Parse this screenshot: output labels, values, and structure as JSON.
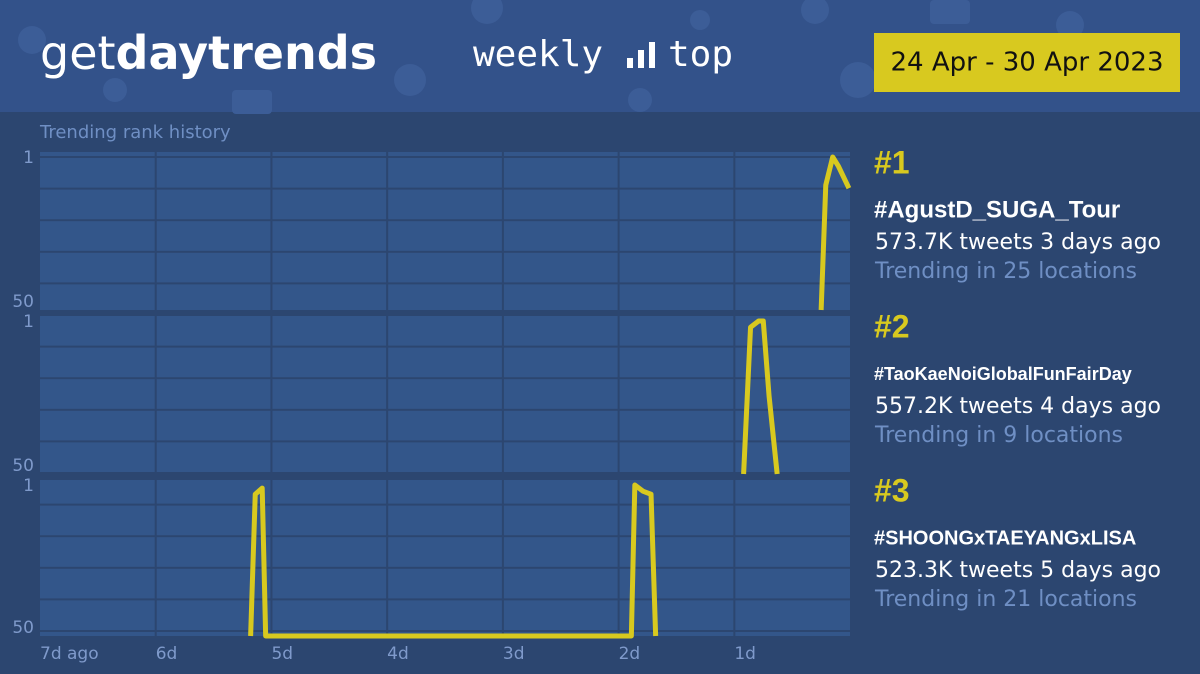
{
  "header": {
    "logo_get": "get",
    "logo_day": "day",
    "logo_trends": "trends",
    "weekly": "weekly",
    "top": "top",
    "date_range": "24 Apr - 30 Apr 2023",
    "subtitle": "Trending rank history"
  },
  "chart_data": [
    {
      "type": "line",
      "color": "#d8c91f",
      "x": [
        0.25,
        0.21,
        0.15,
        0.1,
        0.01
      ],
      "values": [
        50,
        10,
        1,
        4,
        11
      ],
      "xlim": [
        7,
        -0.25
      ],
      "ylim": [
        50,
        1
      ],
      "yticks": [
        1,
        50
      ],
      "rank_label": "#1",
      "trend_name": "#AgustD_SUGA_Tour",
      "tweets": "573.7K tweets 3 days ago",
      "locations": "Trending in 25 locations"
    },
    {
      "type": "line",
      "color": "#d8c91f",
      "x": [
        0.92,
        0.86,
        0.79,
        0.75,
        0.7,
        0.63
      ],
      "values": [
        50,
        3,
        1,
        1,
        25,
        50
      ],
      "xlim": [
        7,
        -0.25
      ],
      "ylim": [
        50,
        1
      ],
      "yticks": [
        1,
        50
      ],
      "rank_label": "#2",
      "trend_name": "#TaoKaeNoiGlobalFunFairDay",
      "tweets": "557.2K tweets 4 days ago",
      "locations": "Trending in 9 locations"
    },
    {
      "type": "line",
      "color": "#d8c91f",
      "x": [
        5.18,
        5.14,
        5.08,
        5.05,
        1.89,
        1.86,
        1.79,
        1.72,
        1.68
      ],
      "values": [
        50,
        4,
        2,
        50,
        50,
        1,
        3,
        4,
        50
      ],
      "xlim": [
        7,
        -0.25
      ],
      "ylim": [
        50,
        1
      ],
      "yticks": [
        1,
        50
      ],
      "xticks": [
        {
          "value": 7,
          "label": "7d ago"
        },
        {
          "value": 6,
          "label": "6d"
        },
        {
          "value": 5,
          "label": "5d"
        },
        {
          "value": 4,
          "label": "4d"
        },
        {
          "value": 3,
          "label": "3d"
        },
        {
          "value": 2,
          "label": "2d"
        },
        {
          "value": 1,
          "label": "1d"
        }
      ],
      "rank_label": "#3",
      "trend_name": "#SHOONGxTAEYANGxLISA",
      "tweets": "523.3K tweets 5 days ago",
      "locations": "Trending in 21 locations"
    }
  ]
}
